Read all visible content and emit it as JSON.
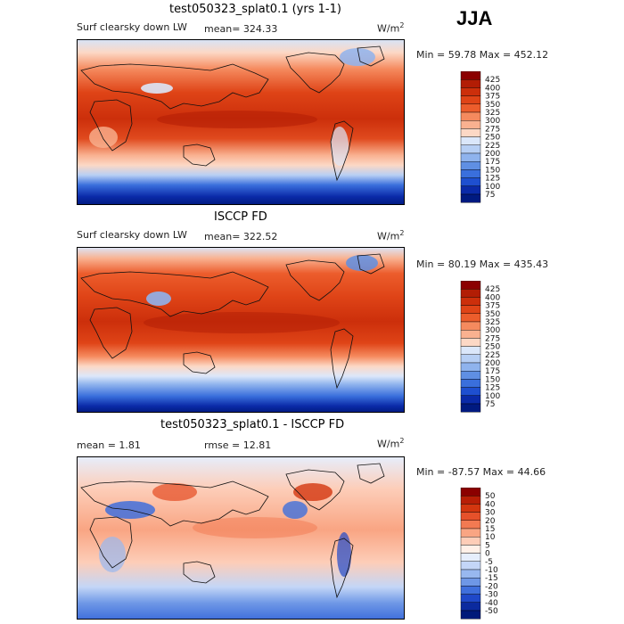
{
  "season": "JJA",
  "panels": [
    {
      "title": "test050323_splat0.1 (yrs 1-1)",
      "variable": "Surf clearsky down LW",
      "stat": "mean=  324.33",
      "unit_base": "W/m",
      "unit_exp": "2",
      "minmax": "Min =  59.78 Max = 452.12",
      "colorbar": {
        "levels": [
          "425",
          "400",
          "375",
          "350",
          "325",
          "300",
          "275",
          "250",
          "225",
          "200",
          "175",
          "150",
          "125",
          "100",
          "75"
        ],
        "colors": [
          "#8b0000",
          "#b21d05",
          "#cc2f0b",
          "#df4417",
          "#ec5d2c",
          "#f58a5e",
          "#f9b190",
          "#fcd8c5",
          "#dbe7fa",
          "#b7cff4",
          "#8fb3ed",
          "#5f8fe3",
          "#3a6fdc",
          "#1e4fd0",
          "#0a2aa8",
          "#001a80"
        ]
      }
    },
    {
      "title": "ISCCP FD",
      "variable": "Surf clearsky down LW",
      "stat": "mean=  322.52",
      "unit_base": "W/m",
      "unit_exp": "2",
      "minmax": "Min =  80.19 Max = 435.43",
      "colorbar": {
        "levels": [
          "425",
          "400",
          "375",
          "350",
          "325",
          "300",
          "275",
          "250",
          "225",
          "200",
          "175",
          "150",
          "125",
          "100",
          "75"
        ],
        "colors": [
          "#8b0000",
          "#b21d05",
          "#cc2f0b",
          "#df4417",
          "#ec5d2c",
          "#f58a5e",
          "#f9b190",
          "#fcd8c5",
          "#dbe7fa",
          "#b7cff4",
          "#8fb3ed",
          "#5f8fe3",
          "#3a6fdc",
          "#1e4fd0",
          "#0a2aa8",
          "#001a80"
        ]
      }
    },
    {
      "title": "test050323_splat0.1 - ISCCP FD",
      "stat": "mean =    1.81",
      "stat2": "rmse =  12.81",
      "unit_base": "W/m",
      "unit_exp": "2",
      "minmax": "Min = -87.57 Max =  44.66",
      "colorbar": {
        "levels": [
          "50",
          "40",
          "30",
          "20",
          "15",
          "10",
          "5",
          "0",
          "-5",
          "-10",
          "-15",
          "-20",
          "-30",
          "-40",
          "-50"
        ],
        "colors": [
          "#8b0000",
          "#b81e06",
          "#d3360f",
          "#e6512a",
          "#f27a52",
          "#f9a583",
          "#fdcdb8",
          "#fff0e8",
          "#e6eefc",
          "#c4d6f7",
          "#98b8ef",
          "#6e97e6",
          "#3f6fdc",
          "#1f48c9",
          "#0b2a9e",
          "#001a7a"
        ]
      }
    }
  ]
}
